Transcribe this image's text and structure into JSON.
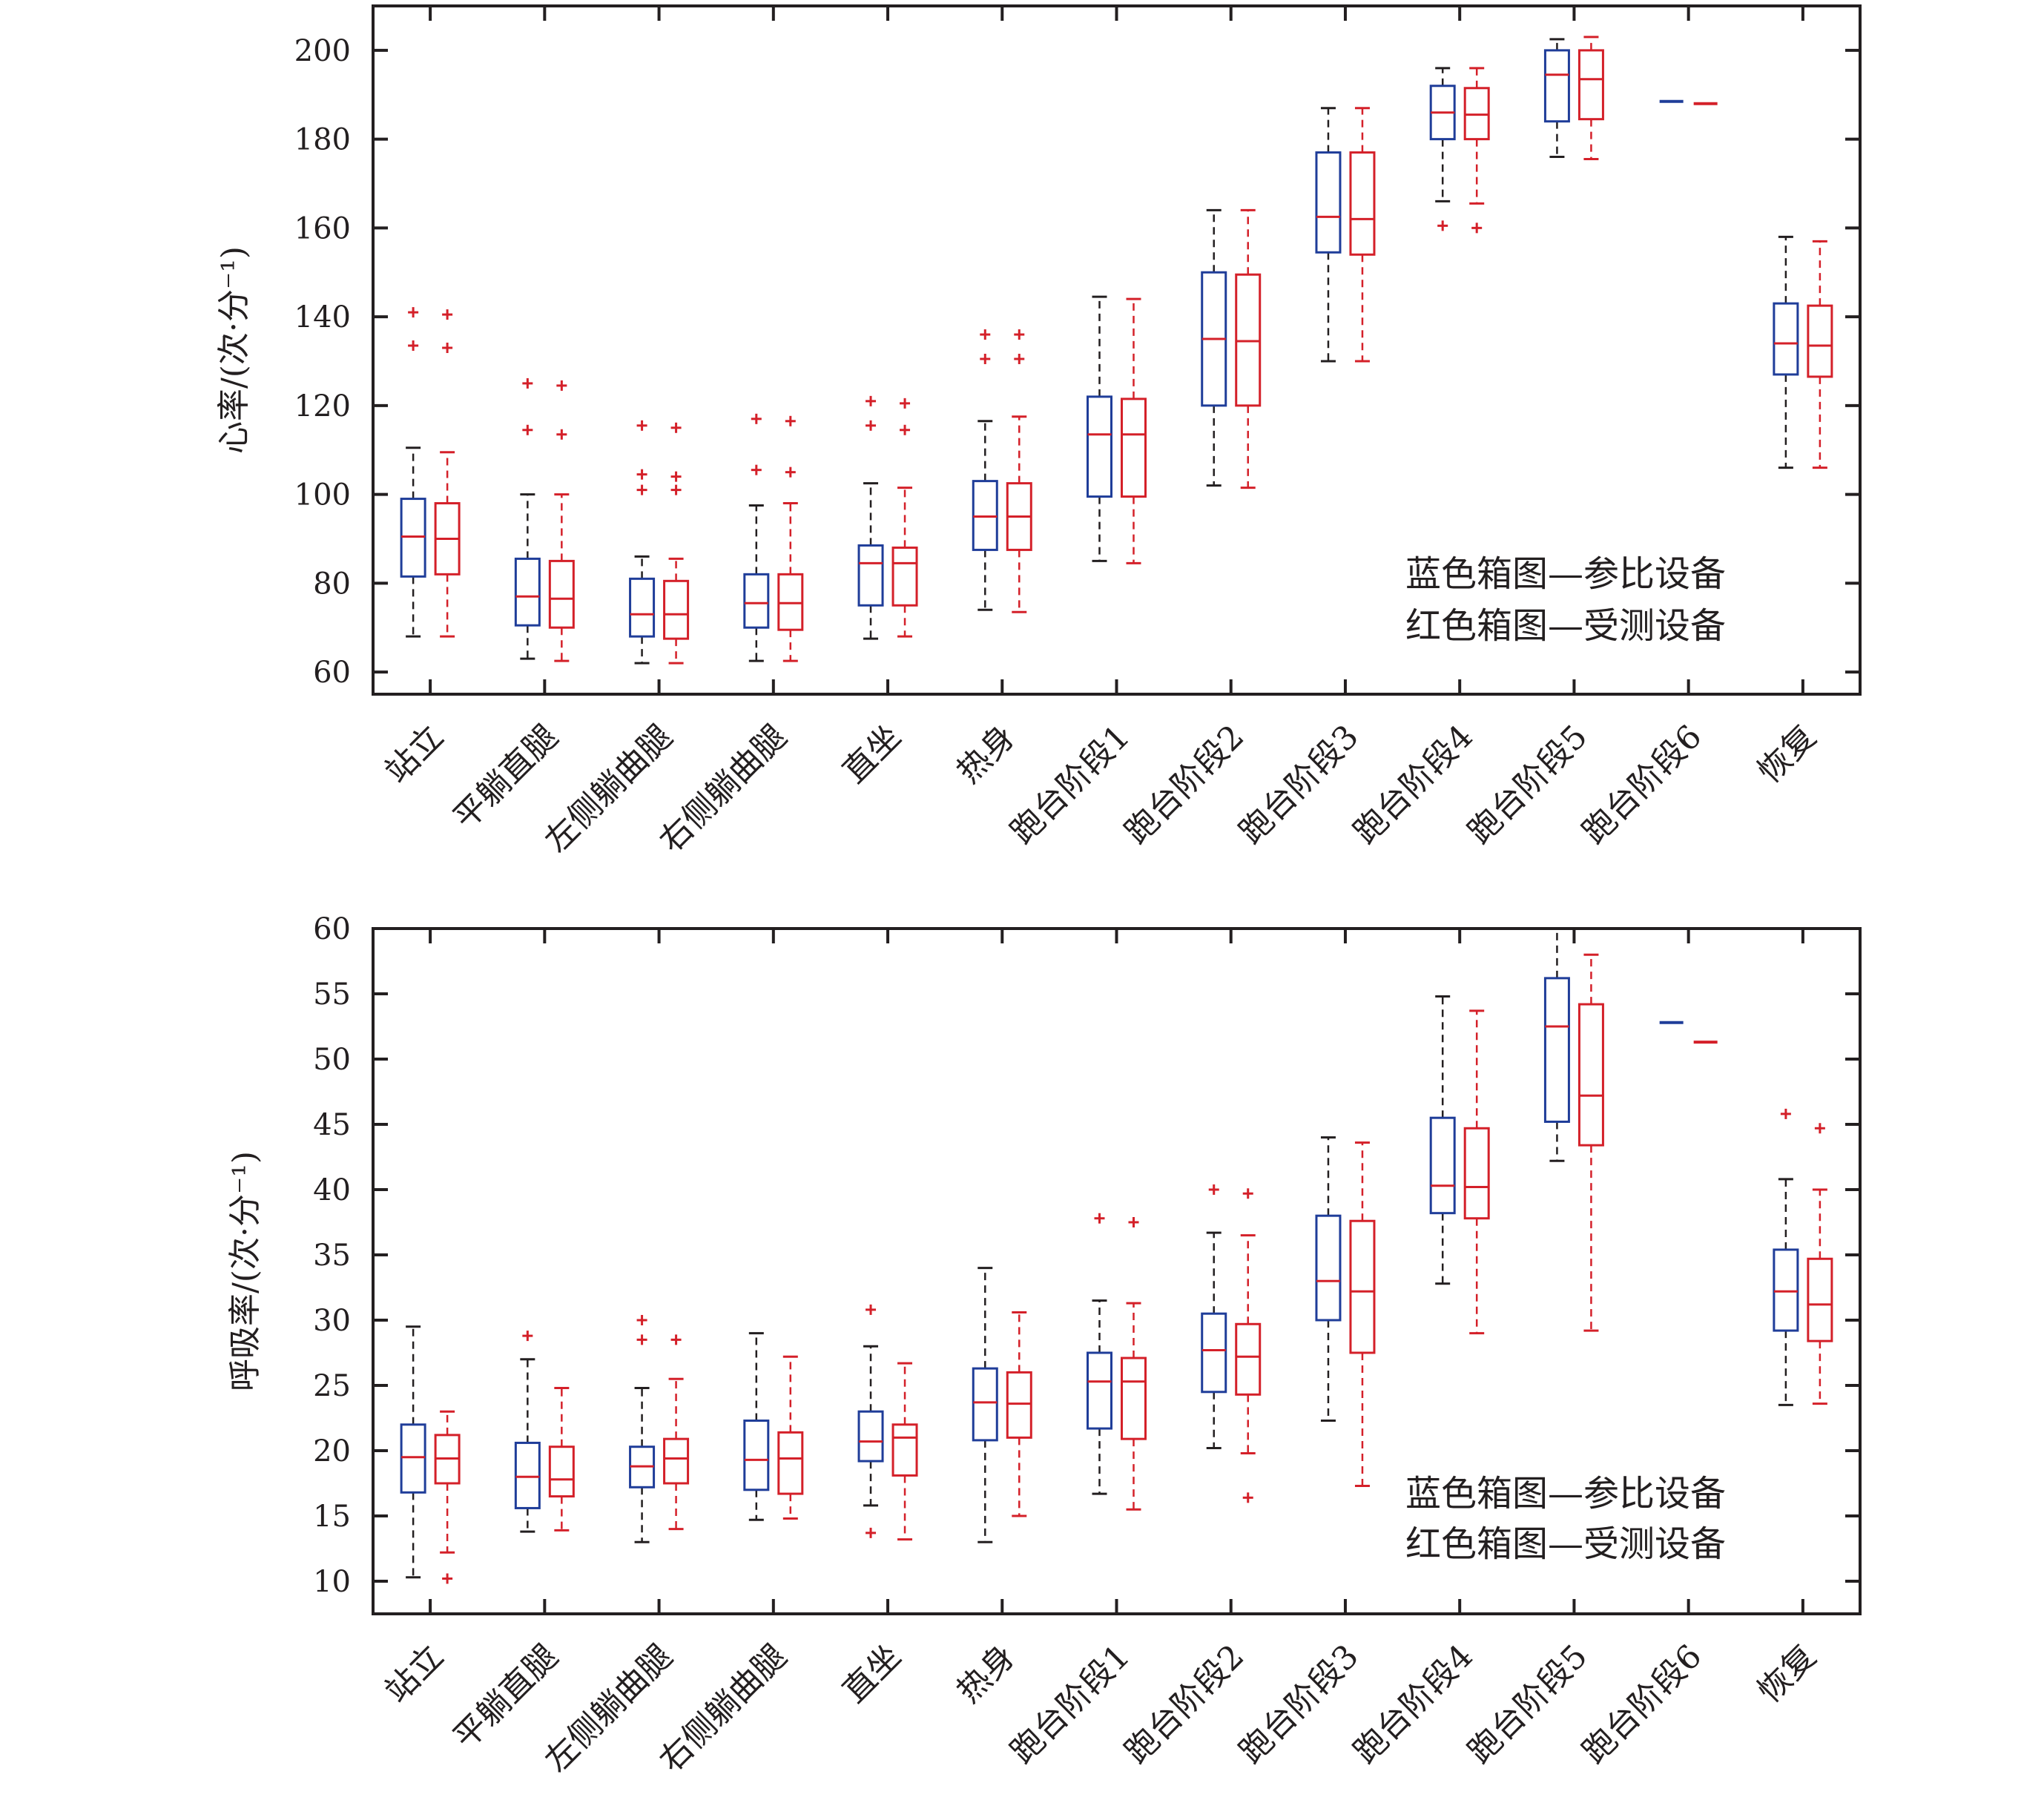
{
  "chart_data": [
    {
      "type": "box",
      "ylabel": "心率/(次·分⁻¹)",
      "ylim": [
        55,
        210
      ],
      "yticks": [
        60,
        80,
        100,
        120,
        140,
        160,
        180,
        200
      ],
      "categories": [
        "站立",
        "平躺直腿",
        "左侧躺曲腿",
        "右侧躺曲腿",
        "直坐",
        "热身",
        "跑台阶段1",
        "跑台阶段2",
        "跑台阶段3",
        "跑台阶段4",
        "跑台阶段5",
        "跑台阶段6",
        "恢复"
      ],
      "legend": [
        "蓝色箱图—参比设备",
        "红色箱图—受测设备"
      ],
      "legend_position": "bottom-right",
      "series": [
        {
          "color": "#1f3d99",
          "boxes": [
            {
              "whisker_low": 68,
              "q1": 81.5,
              "median": 90.5,
              "q3": 99,
              "whisker_high": 110.5,
              "outliers": [
                133.5,
                141
              ]
            },
            {
              "whisker_low": 63,
              "q1": 70.5,
              "median": 77,
              "q3": 85.5,
              "whisker_high": 100,
              "outliers": [
                114.5,
                125
              ]
            },
            {
              "whisker_low": 62,
              "q1": 68,
              "median": 73,
              "q3": 81,
              "whisker_high": 86,
              "outliers": [
                101,
                104.5,
                115.5
              ]
            },
            {
              "whisker_low": 62.5,
              "q1": 70,
              "median": 75.5,
              "q3": 82,
              "whisker_high": 97.5,
              "outliers": [
                105.5,
                117
              ]
            },
            {
              "whisker_low": 67.5,
              "q1": 75,
              "median": 84.5,
              "q3": 88.5,
              "whisker_high": 102.5,
              "outliers": [
                115.5,
                121
              ]
            },
            {
              "whisker_low": 74,
              "q1": 87.5,
              "median": 95,
              "q3": 103,
              "whisker_high": 116.5,
              "outliers": [
                130.5,
                136
              ]
            },
            {
              "whisker_low": 85,
              "q1": 99.5,
              "median": 113.5,
              "q3": 122,
              "whisker_high": 144.5,
              "outliers": []
            },
            {
              "whisker_low": 102,
              "q1": 120,
              "median": 135,
              "q3": 150,
              "whisker_high": 164,
              "outliers": []
            },
            {
              "whisker_low": 130,
              "q1": 154.5,
              "median": 162.5,
              "q3": 177,
              "whisker_high": 187,
              "outliers": []
            },
            {
              "whisker_low": 166,
              "q1": 180,
              "median": 186,
              "q3": 192,
              "whisker_high": 196,
              "outliers": [
                160.5
              ]
            },
            {
              "whisker_low": 176,
              "q1": 184,
              "median": 194.5,
              "q3": 200,
              "whisker_high": 202.5,
              "outliers": []
            },
            {
              "median": 188.5
            },
            {
              "whisker_low": 106,
              "q1": 127,
              "median": 134,
              "q3": 143,
              "whisker_high": 158,
              "outliers": []
            }
          ]
        },
        {
          "color": "#d42029",
          "boxes": [
            {
              "whisker_low": 68,
              "q1": 82,
              "median": 90,
              "q3": 98,
              "whisker_high": 109.5,
              "outliers": [
                133,
                140.5
              ]
            },
            {
              "whisker_low": 62.5,
              "q1": 70,
              "median": 76.5,
              "q3": 85,
              "whisker_high": 100,
              "outliers": [
                113.5,
                124.5
              ]
            },
            {
              "whisker_low": 62,
              "q1": 67.5,
              "median": 73,
              "q3": 80.5,
              "whisker_high": 85.5,
              "outliers": [
                101,
                104,
                115
              ]
            },
            {
              "whisker_low": 62.5,
              "q1": 69.5,
              "median": 75.5,
              "q3": 82,
              "whisker_high": 98,
              "outliers": [
                105,
                116.5
              ]
            },
            {
              "whisker_low": 68,
              "q1": 75,
              "median": 84.5,
              "q3": 88,
              "whisker_high": 101.5,
              "outliers": [
                114.5,
                120.5
              ]
            },
            {
              "whisker_low": 73.5,
              "q1": 87.5,
              "median": 95,
              "q3": 102.5,
              "whisker_high": 117.5,
              "outliers": [
                130.5,
                136
              ]
            },
            {
              "whisker_low": 84.5,
              "q1": 99.5,
              "median": 113.5,
              "q3": 121.5,
              "whisker_high": 144,
              "outliers": []
            },
            {
              "whisker_low": 101.5,
              "q1": 120,
              "median": 134.5,
              "q3": 149.5,
              "whisker_high": 164,
              "outliers": []
            },
            {
              "whisker_low": 130,
              "q1": 154,
              "median": 162,
              "q3": 177,
              "whisker_high": 187,
              "outliers": []
            },
            {
              "whisker_low": 165.5,
              "q1": 180,
              "median": 185.5,
              "q3": 191.5,
              "whisker_high": 196,
              "outliers": [
                160
              ]
            },
            {
              "whisker_low": 175.5,
              "q1": 184.5,
              "median": 193.5,
              "q3": 200,
              "whisker_high": 203,
              "outliers": []
            },
            {
              "median": 188
            },
            {
              "whisker_low": 106,
              "q1": 126.5,
              "median": 133.5,
              "q3": 142.5,
              "whisker_high": 157,
              "outliers": []
            }
          ]
        }
      ]
    },
    {
      "type": "box",
      "ylabel": "呼吸率/(次·分⁻¹)",
      "ylim": [
        7.5,
        60
      ],
      "yticks": [
        10,
        15,
        20,
        25,
        30,
        35,
        40,
        45,
        50,
        55,
        60
      ],
      "categories": [
        "站立",
        "平躺直腿",
        "左侧躺曲腿",
        "右侧躺曲腿",
        "直坐",
        "热身",
        "跑台阶段1",
        "跑台阶段2",
        "跑台阶段3",
        "跑台阶段4",
        "跑台阶段5",
        "跑台阶段6",
        "恢复"
      ],
      "legend": [
        "蓝色箱图—参比设备",
        "红色箱图—受测设备"
      ],
      "legend_position": "bottom-right",
      "series": [
        {
          "color": "#1f3d99",
          "boxes": [
            {
              "whisker_low": 10.3,
              "q1": 16.8,
              "median": 19.5,
              "q3": 22,
              "whisker_high": 29.5,
              "outliers": []
            },
            {
              "whisker_low": 13.8,
              "q1": 15.6,
              "median": 18,
              "q3": 20.6,
              "whisker_high": 27,
              "outliers": [
                28.8
              ]
            },
            {
              "whisker_low": 13,
              "q1": 17.2,
              "median": 18.8,
              "q3": 20.3,
              "whisker_high": 24.8,
              "outliers": [
                28.5,
                30
              ]
            },
            {
              "whisker_low": 14.7,
              "q1": 17,
              "median": 19.3,
              "q3": 22.3,
              "whisker_high": 29,
              "outliers": []
            },
            {
              "whisker_low": 15.8,
              "q1": 19.2,
              "median": 20.7,
              "q3": 23,
              "whisker_high": 28,
              "outliers": [
                13.7,
                30.8
              ]
            },
            {
              "whisker_low": 13,
              "q1": 20.8,
              "median": 23.7,
              "q3": 26.3,
              "whisker_high": 34,
              "outliers": []
            },
            {
              "whisker_low": 16.7,
              "q1": 21.7,
              "median": 25.3,
              "q3": 27.5,
              "whisker_high": 31.5,
              "outliers": [
                37.8
              ]
            },
            {
              "whisker_low": 20.2,
              "q1": 24.5,
              "median": 27.7,
              "q3": 30.5,
              "whisker_high": 36.7,
              "outliers": [
                40
              ]
            },
            {
              "whisker_low": 22.3,
              "q1": 30,
              "median": 33,
              "q3": 38,
              "whisker_high": 44,
              "outliers": []
            },
            {
              "whisker_low": 32.8,
              "q1": 38.2,
              "median": 40.3,
              "q3": 45.5,
              "whisker_high": 54.8,
              "outliers": []
            },
            {
              "whisker_low": 42.2,
              "q1": 45.2,
              "median": 52.5,
              "q3": 56.2,
              "whisker_high": 60,
              "outliers": []
            },
            {
              "median": 52.8
            },
            {
              "whisker_low": 23.5,
              "q1": 29.2,
              "median": 32.2,
              "q3": 35.4,
              "whisker_high": 40.8,
              "outliers": [
                45.8
              ]
            }
          ]
        },
        {
          "color": "#d42029",
          "boxes": [
            {
              "whisker_low": 12.2,
              "q1": 17.5,
              "median": 19.4,
              "q3": 21.2,
              "whisker_high": 23,
              "outliers": [
                10.2
              ]
            },
            {
              "whisker_low": 13.9,
              "q1": 16.5,
              "median": 17.8,
              "q3": 20.3,
              "whisker_high": 24.8,
              "outliers": []
            },
            {
              "whisker_low": 14,
              "q1": 17.5,
              "median": 19.4,
              "q3": 20.9,
              "whisker_high": 25.5,
              "outliers": [
                28.5
              ]
            },
            {
              "whisker_low": 14.8,
              "q1": 16.7,
              "median": 19.4,
              "q3": 21.4,
              "whisker_high": 27.2,
              "outliers": []
            },
            {
              "whisker_low": 13.2,
              "q1": 18.1,
              "median": 21,
              "q3": 22,
              "whisker_high": 26.7,
              "outliers": []
            },
            {
              "whisker_low": 15,
              "q1": 21,
              "median": 23.6,
              "q3": 26,
              "whisker_high": 30.6,
              "outliers": []
            },
            {
              "whisker_low": 15.5,
              "q1": 20.9,
              "median": 25.3,
              "q3": 27.1,
              "whisker_high": 31.3,
              "outliers": [
                37.5
              ]
            },
            {
              "whisker_low": 19.8,
              "q1": 24.3,
              "median": 27.2,
              "q3": 29.7,
              "whisker_high": 36.5,
              "outliers": [
                16.4,
                39.7
              ]
            },
            {
              "whisker_low": 17.3,
              "q1": 27.5,
              "median": 32.2,
              "q3": 37.6,
              "whisker_high": 43.6,
              "outliers": []
            },
            {
              "whisker_low": 29,
              "q1": 37.8,
              "median": 40.2,
              "q3": 44.7,
              "whisker_high": 53.7,
              "outliers": []
            },
            {
              "whisker_low": 29.2,
              "q1": 43.4,
              "median": 47.2,
              "q3": 54.2,
              "whisker_high": 58,
              "outliers": []
            },
            {
              "median": 51.3
            },
            {
              "whisker_low": 23.6,
              "q1": 28.4,
              "median": 31.2,
              "q3": 34.7,
              "whisker_high": 40,
              "outliers": [
                44.7
              ]
            }
          ]
        }
      ]
    }
  ]
}
